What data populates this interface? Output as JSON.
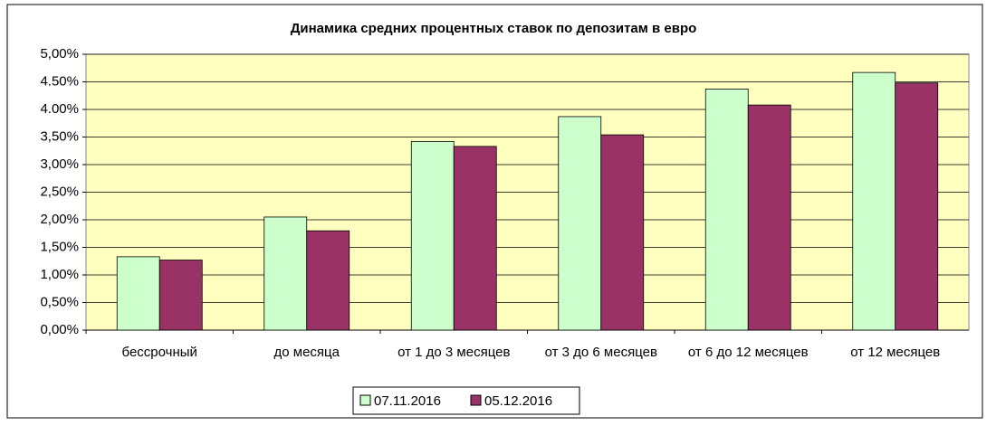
{
  "chart_data": {
    "type": "bar",
    "title": "Динамика средних процентных ставок по депозитам в евро",
    "categories": [
      "бессрочный",
      "до месяца",
      "от 1 до 3 месяцев",
      "от 3 до 6 месяцев",
      "от 6 до 12 месяцев",
      "от 12 месяцев"
    ],
    "series": [
      {
        "name": "07.11.2016",
        "color": "#ccffcc",
        "values": [
          1.33,
          2.05,
          3.42,
          3.87,
          4.37,
          4.67
        ]
      },
      {
        "name": "05.12.2016",
        "color": "#993366",
        "values": [
          1.27,
          1.8,
          3.33,
          3.54,
          4.08,
          4.48
        ]
      }
    ],
    "ylim": [
      0,
      5
    ],
    "yticks": [
      {
        "value": 0,
        "label": "0,00%"
      },
      {
        "value": 0.5,
        "label": "0,50%"
      },
      {
        "value": 1,
        "label": "1,00%"
      },
      {
        "value": 1.5,
        "label": "1,50%"
      },
      {
        "value": 2,
        "label": "2,00%"
      },
      {
        "value": 2.5,
        "label": "2,50%"
      },
      {
        "value": 3,
        "label": "3,00%"
      },
      {
        "value": 3.5,
        "label": "3,50%"
      },
      {
        "value": 4,
        "label": "4.00%"
      },
      {
        "value": 4.5,
        "label": "4.50%"
      },
      {
        "value": 5,
        "label": "5,00%"
      }
    ],
    "grid": true,
    "legend": "bottom"
  }
}
